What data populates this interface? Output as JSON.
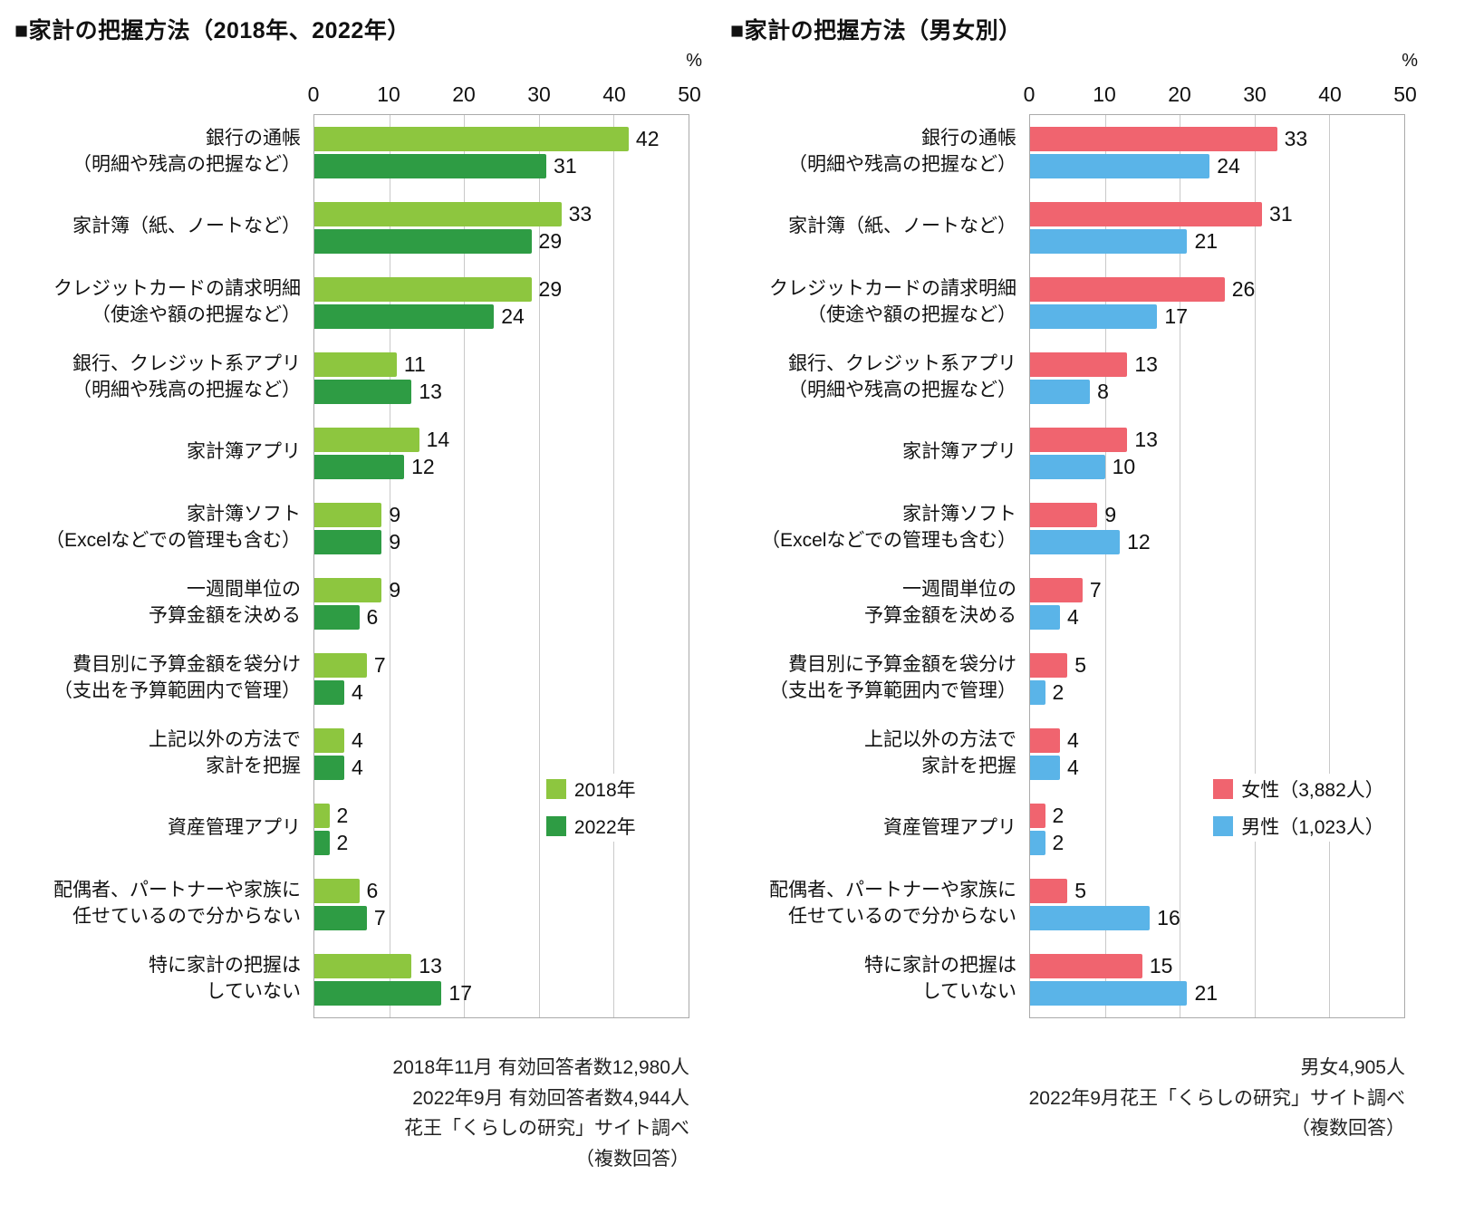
{
  "page": {
    "background": "#ffffff"
  },
  "chart_data": [
    {
      "type": "bar",
      "orientation": "horizontal",
      "title": "■家計の把握方法（2018年、2022年）",
      "unit": "%",
      "xlim": [
        0,
        50
      ],
      "ticks": [
        0,
        10,
        20,
        30,
        40,
        50
      ],
      "grid": true,
      "legend_position": "inside-right",
      "categories": [
        "銀行の通帳\n（明細や残高の把握など）",
        "家計簿（紙、ノートなど）",
        "クレジットカードの請求明細\n（使途や額の把握など）",
        "銀行、クレジット系アプリ\n（明細や残高の把握など）",
        "家計簿アプリ",
        "家計簿ソフト\n（Excelなどでの管理も含む）",
        "一週間単位の\n予算金額を決める",
        "費目別に予算金額を袋分け\n（支出を予算範囲内で管理）",
        "上記以外の方法で\n家計を把握",
        "資産管理アプリ",
        "配偶者、パートナーや家族に\n任せているので分からない",
        "特に家計の把握は\nしていない"
      ],
      "series": [
        {
          "name": "2018年",
          "color": "#8dc63f",
          "values": [
            42,
            33,
            29,
            11,
            14,
            9,
            9,
            7,
            4,
            2,
            6,
            13
          ]
        },
        {
          "name": "2022年",
          "color": "#2e9c44",
          "values": [
            31,
            29,
            24,
            13,
            12,
            9,
            6,
            4,
            4,
            2,
            7,
            17
          ]
        }
      ],
      "footer": [
        "2018年11月 有効回答者数12,980人",
        "2022年9月 有効回答者数4,944人",
        "花王「くらしの研究」サイト調べ",
        "（複数回答）"
      ]
    },
    {
      "type": "bar",
      "orientation": "horizontal",
      "title": "■家計の把握方法（男女別）",
      "unit": "%",
      "xlim": [
        0,
        50
      ],
      "ticks": [
        0,
        10,
        20,
        30,
        40,
        50
      ],
      "grid": true,
      "legend_position": "inside-right",
      "categories": [
        "銀行の通帳\n（明細や残高の把握など）",
        "家計簿（紙、ノートなど）",
        "クレジットカードの請求明細\n（使途や額の把握など）",
        "銀行、クレジット系アプリ\n（明細や残高の把握など）",
        "家計簿アプリ",
        "家計簿ソフト\n（Excelなどでの管理も含む）",
        "一週間単位の\n予算金額を決める",
        "費目別に予算金額を袋分け\n（支出を予算範囲内で管理）",
        "上記以外の方法で\n家計を把握",
        "資産管理アプリ",
        "配偶者、パートナーや家族に\n任せているので分からない",
        "特に家計の把握は\nしていない"
      ],
      "series": [
        {
          "name": "女性（3,882人）",
          "color": "#f0646f",
          "values": [
            33,
            31,
            26,
            13,
            13,
            9,
            7,
            5,
            4,
            2,
            5,
            15
          ]
        },
        {
          "name": "男性（1,023人）",
          "color": "#5ab4e8",
          "values": [
            24,
            21,
            17,
            8,
            10,
            12,
            4,
            2,
            4,
            2,
            16,
            21
          ]
        }
      ],
      "footer": [
        "男女4,905人",
        "2022年9月花王「くらしの研究」サイト調べ",
        "（複数回答）"
      ]
    }
  ]
}
